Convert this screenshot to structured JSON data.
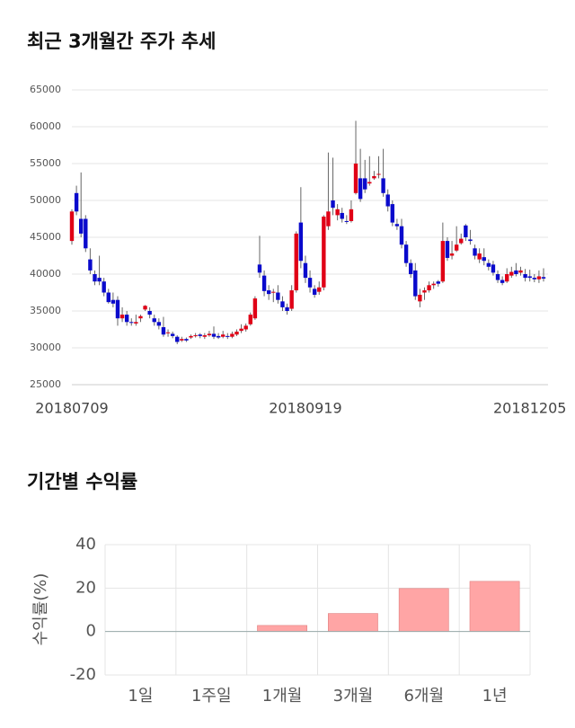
{
  "chart_data": [
    {
      "type": "candlestick",
      "title": "최근 3개월간 주가 추세",
      "categories": [
        "20180709",
        null,
        null,
        null,
        null,
        null,
        null,
        null,
        null,
        null,
        null,
        null,
        null,
        null,
        null,
        null,
        null,
        null,
        null,
        null,
        null,
        null,
        null,
        null,
        null,
        null,
        null,
        null,
        null,
        null,
        null,
        null,
        null,
        null,
        null,
        null,
        null,
        null,
        null,
        null,
        null,
        null,
        null,
        null,
        null,
        null,
        null,
        null,
        null,
        null,
        null,
        "20180919",
        null,
        null,
        null,
        null,
        null,
        null,
        null,
        null,
        null,
        null,
        null,
        null,
        null,
        null,
        null,
        null,
        null,
        null,
        null,
        null,
        null,
        null,
        null,
        null,
        null,
        null,
        null,
        null,
        null,
        null,
        null,
        null,
        null,
        null,
        null,
        null,
        null,
        null,
        null,
        null,
        null,
        null,
        null,
        null,
        null,
        null,
        null,
        null,
        "20181205",
        null,
        null,
        null
      ],
      "open": [
        44500,
        51000,
        47500,
        47500,
        42000,
        40000,
        39500,
        39000,
        37500,
        36500,
        36500,
        34000,
        34500,
        33500,
        33300,
        34000,
        35200,
        35000,
        34000,
        33500,
        32800,
        32000,
        31900,
        31500,
        31000,
        31200,
        31400,
        31600,
        31800,
        31500,
        31700,
        31900,
        31600,
        31500,
        31600,
        31500,
        31800,
        32300,
        32500,
        33200,
        34000,
        41300,
        39800,
        37800,
        37500,
        37500,
        36300,
        35500,
        35300,
        37800,
        47000,
        41500,
        39500,
        38000,
        37600,
        38200,
        46500,
        50000,
        48000,
        48300,
        47200,
        47200,
        51000,
        53000,
        53000,
        52300,
        53000,
        53500,
        53000,
        50800,
        49500,
        46800,
        46500,
        44000,
        41500,
        40500,
        36300,
        37500,
        37800,
        38500,
        39000,
        39000,
        44500,
        42500,
        43200,
        44200,
        46600,
        44700,
        43500,
        42000,
        42300,
        41500,
        41300,
        40000,
        39200,
        39000,
        39800,
        40500,
        40200,
        40000,
        39700,
        39500,
        39300,
        39600
      ],
      "high": [
        48800,
        52000,
        53800,
        48000,
        43500,
        40500,
        42500,
        39500,
        38000,
        37500,
        37000,
        35500,
        35000,
        34000,
        34500,
        34500,
        35800,
        35500,
        34500,
        34000,
        34200,
        32500,
        32200,
        31700,
        31500,
        31400,
        31800,
        32000,
        32000,
        32000,
        32300,
        32900,
        32000,
        32300,
        32000,
        32200,
        32500,
        33200,
        33300,
        34800,
        37000,
        45200,
        40500,
        38500,
        38000,
        38500,
        37000,
        36000,
        38500,
        45800,
        51800,
        42500,
        40500,
        38500,
        39000,
        48000,
        56500,
        55800,
        49500,
        49000,
        48000,
        50000,
        60800,
        57000,
        55500,
        56000,
        54000,
        56000,
        57000,
        51500,
        50000,
        47500,
        47500,
        44500,
        42000,
        41500,
        38000,
        38200,
        39000,
        39000,
        39200,
        47000,
        45000,
        44500,
        46500,
        45500,
        46800,
        46000,
        44000,
        43500,
        43500,
        42000,
        41800,
        40500,
        39700,
        40800,
        41000,
        41500,
        41000,
        40700,
        40600,
        40000,
        40500,
        40800
      ],
      "low": [
        44000,
        48000,
        45000,
        43000,
        40000,
        38500,
        38500,
        37000,
        36000,
        35500,
        33000,
        33500,
        33000,
        33000,
        33000,
        33500,
        35000,
        34000,
        33000,
        32500,
        31500,
        31500,
        31300,
        30500,
        30800,
        30800,
        31200,
        31400,
        31300,
        31200,
        31500,
        31200,
        31200,
        31300,
        31200,
        31300,
        31600,
        32000,
        32200,
        33000,
        33800,
        39500,
        37000,
        36500,
        36200,
        36000,
        35000,
        34500,
        35000,
        37500,
        40800,
        38800,
        37500,
        36800,
        37200,
        37800,
        46000,
        48000,
        47300,
        47000,
        46800,
        47000,
        50800,
        49800,
        51000,
        52000,
        52800,
        53000,
        50500,
        48500,
        46500,
        46000,
        43500,
        41000,
        39500,
        36500,
        35500,
        36500,
        37500,
        38000,
        38300,
        38800,
        41800,
        42000,
        43000,
        44000,
        44500,
        44000,
        42000,
        41500,
        41200,
        40500,
        39800,
        38800,
        38500,
        38800,
        39500,
        39700,
        39800,
        39000,
        39000,
        38900,
        38800,
        39000
      ],
      "close": [
        48500,
        48500,
        45500,
        43500,
        40500,
        39000,
        39000,
        37500,
        36200,
        36000,
        34000,
        34500,
        33500,
        33400,
        33500,
        34300,
        35700,
        34500,
        33500,
        33000,
        31800,
        32100,
        31600,
        30800,
        31200,
        31000,
        31600,
        31700,
        31600,
        31700,
        31900,
        31500,
        31400,
        31800,
        31500,
        31900,
        32200,
        32600,
        33000,
        34500,
        36700,
        40200,
        37700,
        37300,
        37600,
        36500,
        35500,
        35000,
        37800,
        45500,
        41800,
        39500,
        38200,
        37200,
        38200,
        47800,
        48500,
        49000,
        48800,
        47500,
        47100,
        48800,
        55000,
        50200,
        51500,
        52500,
        53300,
        53600,
        51000,
        49200,
        47000,
        46500,
        44000,
        41500,
        40000,
        37000,
        37200,
        37800,
        38500,
        38700,
        38700,
        44500,
        42200,
        42800,
        44000,
        44800,
        45000,
        44500,
        42500,
        42800,
        41800,
        41000,
        40200,
        39200,
        38800,
        40000,
        40300,
        40000,
        40500,
        39500,
        39500,
        39300,
        39700,
        39400
      ],
      "up_color": "#e00016",
      "down_color": "#0a0acc",
      "ylim": [
        25000,
        65000
      ],
      "yticks": [
        25000,
        30000,
        35000,
        40000,
        45000,
        50000,
        55000,
        60000,
        65000
      ],
      "grid": true
    },
    {
      "type": "bar",
      "title": "기간별 수익률",
      "ylabel": "수익률(%)",
      "categories": [
        "1일",
        "1주일",
        "1개월",
        "3개월",
        "6개월",
        "1년"
      ],
      "values": [
        0,
        0,
        2.8,
        8.3,
        19.8,
        23.1
      ],
      "color": "#ffa5a5",
      "edge_color": "#e07f7f",
      "ylim": [
        -20,
        40
      ],
      "yticks": [
        -20,
        0,
        20,
        40
      ],
      "grid": true
    }
  ]
}
